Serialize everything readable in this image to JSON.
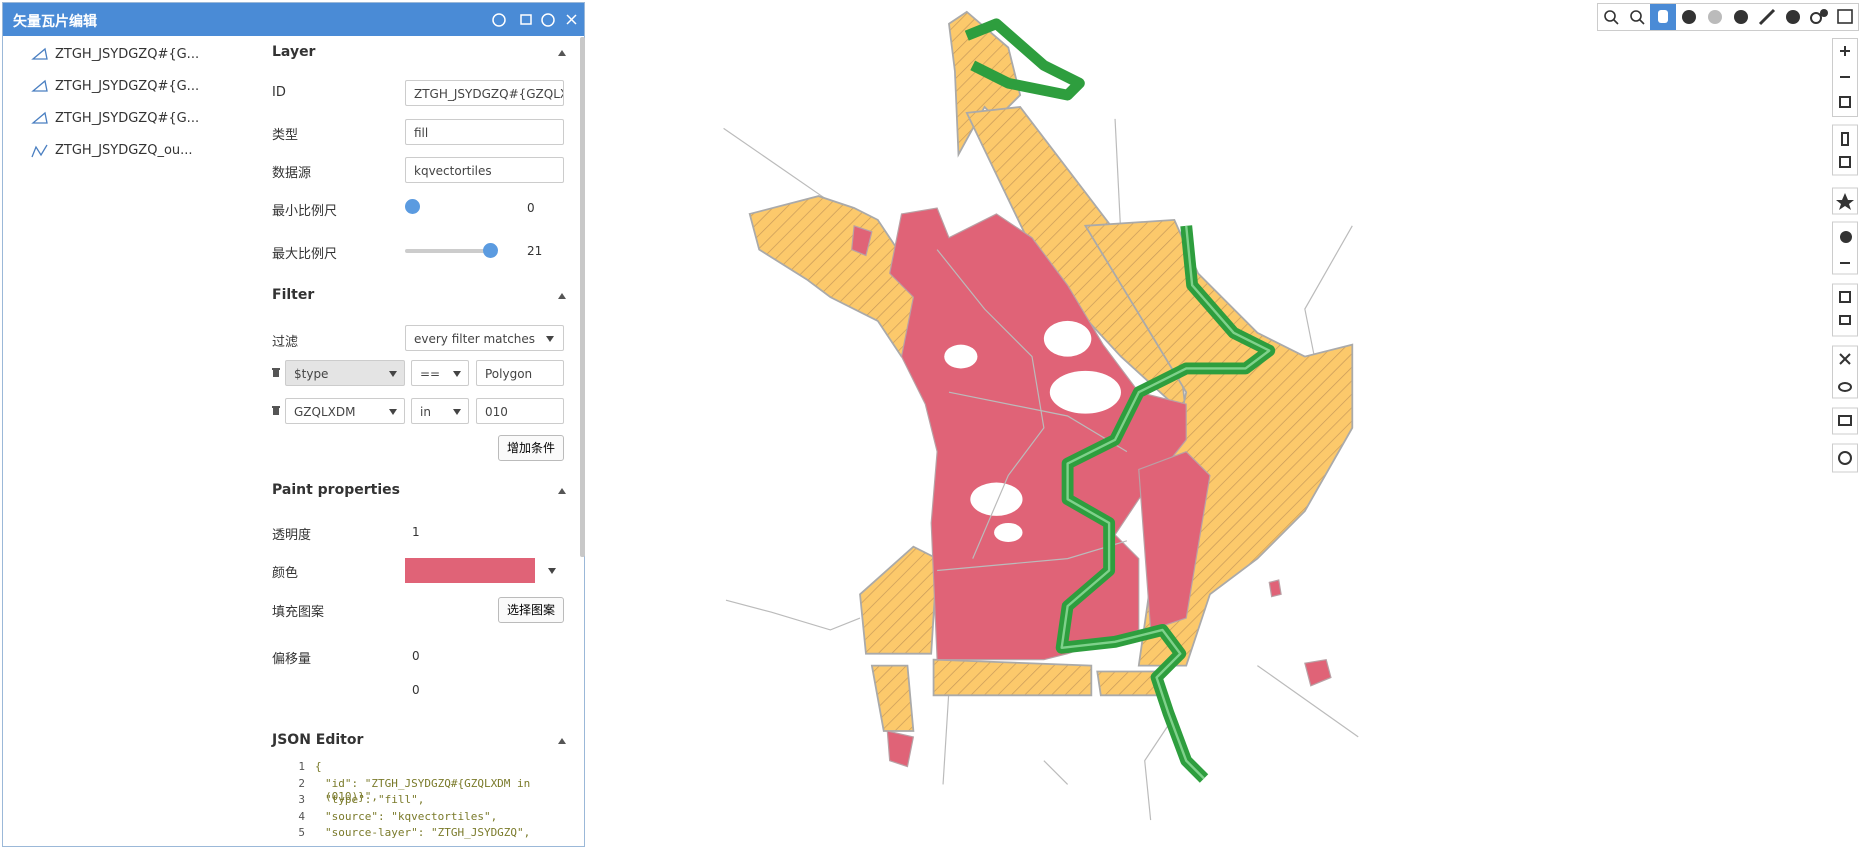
{
  "panel": {
    "title": "矢量瓦片编辑"
  },
  "layers": [
    "ZTGH_JSYDGZQ#{G...",
    "ZTGH_JSYDGZQ#{G...",
    "ZTGH_JSYDGZQ#{G...",
    "ZTGH_JSYDGZQ_ou..."
  ],
  "layer_section": {
    "title": "Layer",
    "fields": [
      {
        "label": "ID",
        "value": "ZTGH_JSYDGZQ#{GZQLXD"
      },
      {
        "label": "类型",
        "value": "fill"
      },
      {
        "label": "数据源",
        "value": "kqvectortiles"
      }
    ],
    "min_zoom": {
      "label": "最小比例尺",
      "value": 0
    },
    "max_zoom": {
      "label": "最大比例尺",
      "value": 21
    }
  },
  "filter_section": {
    "title": "Filter",
    "label": "过滤",
    "mode": "every filter matches",
    "conditions": [
      {
        "key": "$type",
        "op": "==",
        "value": "Polygon"
      },
      {
        "key": "GZQLXDM",
        "op": "in",
        "value": "010"
      }
    ],
    "add_button": "增加条件"
  },
  "paint_section": {
    "title": "Paint properties",
    "opacity": {
      "label": "透明度",
      "value": 1
    },
    "color": {
      "label": "颜色",
      "value": "#e06377"
    },
    "pattern": {
      "label": "填充图案",
      "button": "选择图案"
    },
    "offset": {
      "label": "偏移量",
      "values": [
        0,
        0
      ]
    }
  },
  "json_editor": {
    "title": "JSON Editor",
    "lines": [
      {
        "number": 1,
        "text": "{"
      },
      {
        "number": 2,
        "text": "\"id\": \"ZTGH_JSYDGZQ#{GZQLXDM in (010)}\","
      },
      {
        "number": 3,
        "text": "\"type\": \"fill\","
      },
      {
        "number": 4,
        "text": "\"source\": \"kqvectortiles\","
      },
      {
        "number": 5,
        "text": "\"source-layer\": \"ZTGH_JSYDGZQ\","
      }
    ]
  }
}
